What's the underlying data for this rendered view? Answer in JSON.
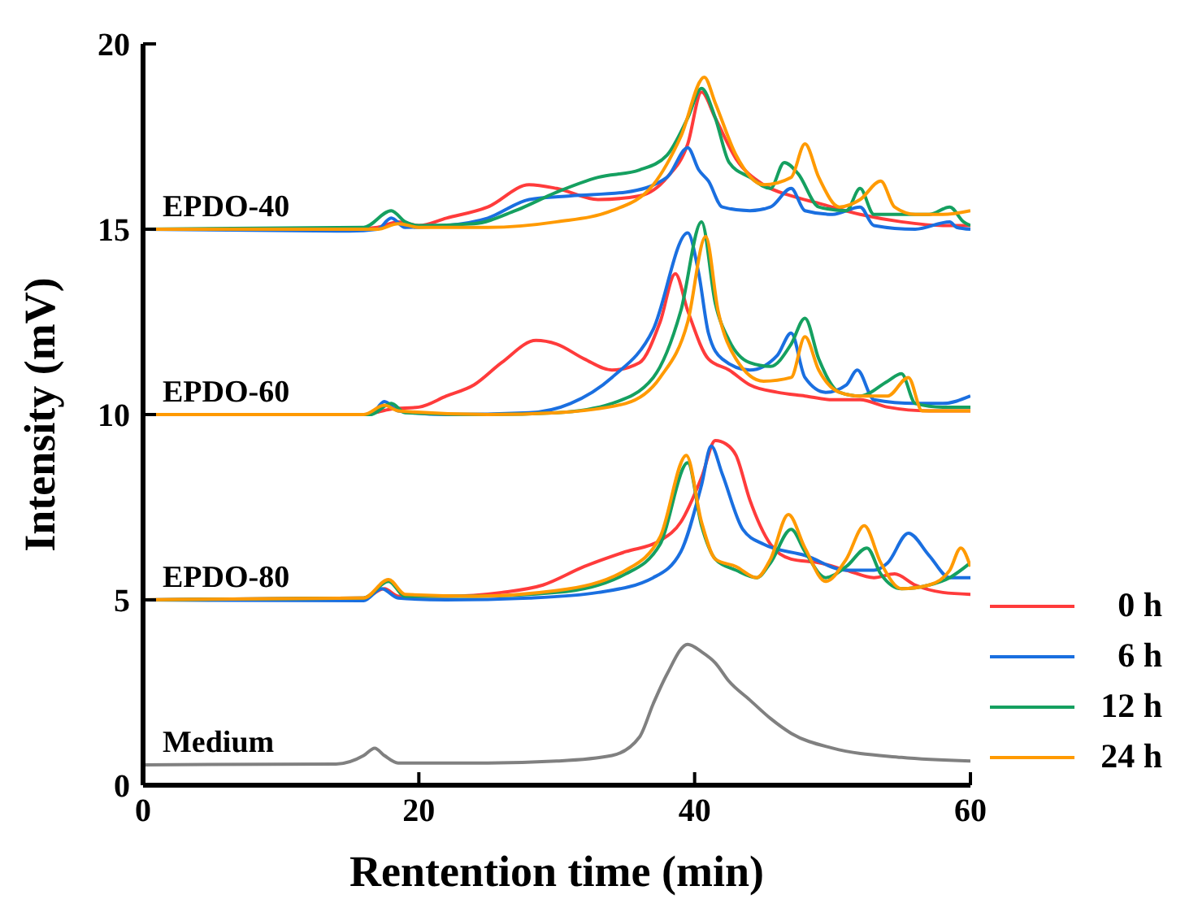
{
  "chart_data": {
    "type": "line",
    "xlabel": "Rentention time (min)",
    "ylabel": "Intensity (mV)",
    "xlim": [
      0,
      60
    ],
    "xticks": [
      0,
      20,
      40,
      60
    ],
    "ylim": [
      0,
      20
    ],
    "yticks": [
      0,
      5,
      10,
      15,
      20
    ],
    "grid": false,
    "legend": "bottom right",
    "marker": "none",
    "line_style": "solid",
    "annotations": [
      "EPDO-40",
      "EPDO-60",
      "EPDO-80",
      "Medium"
    ],
    "series": [
      {
        "color": "#ff3b3b",
        "x": [
          0,
          15,
          17,
          18.5,
          20,
          22,
          25,
          28,
          30,
          33,
          36,
          38,
          39.5,
          40.5,
          41.5,
          43,
          45,
          47,
          49,
          52,
          55,
          58,
          60
        ],
        "values": [
          15,
          15,
          15.05,
          15.2,
          15.1,
          15.3,
          15.6,
          16.2,
          16.1,
          15.8,
          15.9,
          16.4,
          17.3,
          18.7,
          18,
          16.9,
          16.2,
          15.9,
          15.7,
          15.4,
          15.2,
          15.1,
          15.1
        ]
      },
      {
        "color": "#1a6fe0",
        "x": [
          0,
          15,
          17,
          18,
          19,
          22,
          25,
          28,
          31,
          35,
          38,
          39.5,
          40.3,
          41,
          42,
          44,
          45.5,
          47,
          48,
          50,
          52,
          53,
          56,
          58.5,
          59,
          60
        ],
        "values": [
          15,
          14.95,
          15,
          15.3,
          15.05,
          15.1,
          15.3,
          15.8,
          15.9,
          16,
          16.4,
          17.2,
          16.6,
          16.3,
          15.6,
          15.5,
          15.6,
          16.1,
          15.5,
          15.4,
          15.6,
          15.1,
          15,
          15.2,
          15.05,
          15
        ]
      },
      {
        "color": "#15a060",
        "x": [
          0,
          16,
          18,
          19,
          20,
          24,
          27,
          30,
          33,
          36,
          38,
          39.5,
          40.5,
          41.5,
          42.5,
          44,
          45.5,
          46.5,
          47.5,
          49,
          51,
          52,
          53,
          55,
          57,
          58.5,
          59.5,
          60
        ],
        "values": [
          15,
          15.05,
          15.5,
          15.2,
          15.1,
          15.15,
          15.5,
          16,
          16.4,
          16.6,
          17,
          18,
          18.8,
          18,
          16.8,
          16.4,
          16.1,
          16.8,
          16.5,
          15.6,
          15.5,
          16.1,
          15.4,
          15.4,
          15.4,
          15.6,
          15.2,
          15.1
        ]
      },
      {
        "color": "#ff9a00",
        "x": [
          0,
          17,
          18.5,
          20,
          25,
          30,
          34,
          37,
          39,
          40.7,
          41.5,
          43,
          45,
          47,
          48,
          49,
          50.5,
          52,
          53.5,
          54.5,
          56,
          58,
          60
        ],
        "values": [
          15,
          15,
          15.15,
          15.05,
          15.05,
          15.2,
          15.5,
          16.2,
          17.5,
          19.1,
          18.4,
          17,
          16.2,
          16.4,
          17.3,
          16.4,
          15.6,
          15.8,
          16.3,
          15.6,
          15.4,
          15.4,
          15.5
        ]
      },
      {
        "color": "#ff3b3b",
        "x": [
          0,
          16,
          18,
          20,
          22,
          24,
          26,
          28.5,
          30,
          32,
          34,
          36,
          37.5,
          38.6,
          39.5,
          41,
          42.5,
          44,
          46,
          48,
          50,
          52,
          54,
          57,
          60
        ],
        "values": [
          10,
          10,
          10.15,
          10.2,
          10.5,
          10.8,
          11.4,
          12,
          11.9,
          11.5,
          11.2,
          11.4,
          12.5,
          13.8,
          12.8,
          11.5,
          11.2,
          10.8,
          10.6,
          10.5,
          10.4,
          10.4,
          10.2,
          10.1,
          10.1
        ]
      },
      {
        "color": "#1a6fe0",
        "x": [
          0,
          16.5,
          17.5,
          18.5,
          22,
          28,
          31,
          34,
          37,
          39.5,
          40.3,
          41,
          42,
          44,
          46,
          47,
          48,
          49.5,
          51,
          51.8,
          53,
          56,
          58,
          60
        ],
        "values": [
          10,
          10,
          10.35,
          10.1,
          10,
          10.05,
          10.3,
          11,
          12.3,
          14.9,
          13.8,
          12.2,
          11.5,
          11.2,
          11.6,
          12.2,
          11,
          10.6,
          10.8,
          11.2,
          10.4,
          10.3,
          10.3,
          10.5
        ]
      },
      {
        "color": "#15a060",
        "x": [
          0,
          16.5,
          18,
          19,
          25,
          30,
          34,
          37,
          39,
          40.5,
          41.5,
          42.5,
          44,
          45.5,
          47,
          48,
          49,
          50.5,
          52,
          54,
          55,
          56,
          58,
          60
        ],
        "values": [
          10,
          10,
          10.3,
          10.05,
          10,
          10.05,
          10.3,
          11,
          12.8,
          15.2,
          13,
          12,
          11.4,
          11.3,
          11.9,
          12.6,
          11.5,
          10.6,
          10.5,
          10.9,
          11.1,
          10.3,
          10.2,
          10.2
        ]
      },
      {
        "color": "#ff9a00",
        "x": [
          0,
          16,
          17.5,
          18.5,
          25,
          30,
          35,
          37.5,
          39.5,
          40.8,
          41.7,
          43,
          45,
          47,
          48,
          49,
          50.5,
          52,
          54,
          55.5,
          56.5,
          58,
          60
        ],
        "values": [
          10,
          10,
          10.25,
          10.1,
          10,
          10.05,
          10.3,
          11,
          12.5,
          14.8,
          12.8,
          11.5,
          10.9,
          11,
          12.1,
          11.2,
          10.6,
          10.5,
          10.5,
          11,
          10.1,
          10.1,
          10.1
        ]
      },
      {
        "name": "0 h",
        "color": "#ff3b3b",
        "x": [
          0,
          16,
          17.5,
          18.5,
          22,
          26,
          29,
          32,
          35,
          37.5,
          39,
          40.5,
          41.5,
          42.3,
          43,
          44,
          45.5,
          47,
          49,
          51,
          53,
          54.5,
          56,
          58,
          60
        ],
        "values": [
          5,
          5.05,
          5.3,
          5.1,
          5.1,
          5.2,
          5.4,
          5.9,
          6.3,
          6.6,
          7.1,
          8.3,
          9.3,
          9.2,
          8.9,
          7.7,
          6.5,
          6.1,
          6,
          5.8,
          5.6,
          5.7,
          5.4,
          5.2,
          5.15
        ]
      },
      {
        "name": "6 h",
        "color": "#1a6fe0",
        "x": [
          0,
          16,
          17.3,
          18.5,
          22,
          28,
          33,
          37,
          39,
          40.5,
          41.2,
          42,
          43.5,
          45,
          48,
          51,
          53,
          54,
          55.5,
          57,
          58.5,
          60
        ],
        "values": [
          5,
          4.98,
          5.3,
          5.05,
          5,
          5.05,
          5.2,
          5.6,
          6.3,
          8.1,
          9.15,
          8.4,
          6.9,
          6.5,
          6.2,
          5.8,
          5.8,
          6,
          6.8,
          6.2,
          5.6,
          5.6
        ]
      },
      {
        "name": "12 h",
        "color": "#15a060",
        "x": [
          0,
          16,
          17.8,
          19,
          24,
          30,
          35,
          37.5,
          39.5,
          40.5,
          41.5,
          43,
          44.5,
          45.5,
          47,
          48,
          49.5,
          51,
          52.5,
          53.5,
          55,
          57,
          58.5,
          60
        ],
        "values": [
          5,
          5.05,
          5.5,
          5.1,
          5.1,
          5.2,
          5.7,
          6.5,
          8.7,
          7,
          6.1,
          5.8,
          5.6,
          6,
          6.9,
          6.3,
          5.6,
          5.9,
          6.4,
          5.7,
          5.3,
          5.4,
          5.6,
          6
        ]
      },
      {
        "name": "24 h",
        "color": "#ff9a00",
        "x": [
          0,
          16,
          17.8,
          19,
          24,
          30,
          35,
          37.5,
          39.4,
          40.5,
          41.5,
          43,
          44.5,
          45.5,
          46.8,
          48,
          49.5,
          51,
          52.3,
          53.5,
          55,
          57,
          58.5,
          59.3,
          60
        ],
        "values": [
          5,
          5.05,
          5.55,
          5.15,
          5.1,
          5.25,
          5.8,
          6.7,
          8.9,
          7.1,
          6.1,
          5.9,
          5.6,
          6.1,
          7.3,
          6.4,
          5.5,
          6.1,
          7,
          6,
          5.3,
          5.4,
          5.8,
          6.4,
          5.9
        ]
      },
      {
        "color": "#808080",
        "x": [
          0,
          14,
          16,
          16.8,
          17.5,
          18.5,
          25,
          30,
          34,
          36,
          37,
          38,
          39.5,
          40.5,
          41.5,
          42.5,
          44,
          45.5,
          47,
          50,
          55,
          60
        ],
        "values": [
          0.55,
          0.57,
          0.8,
          1,
          0.8,
          0.6,
          0.6,
          0.65,
          0.8,
          1.3,
          2.2,
          3,
          3.8,
          3.6,
          3.3,
          2.8,
          2.3,
          1.8,
          1.4,
          1,
          0.75,
          0.65
        ]
      }
    ]
  }
}
